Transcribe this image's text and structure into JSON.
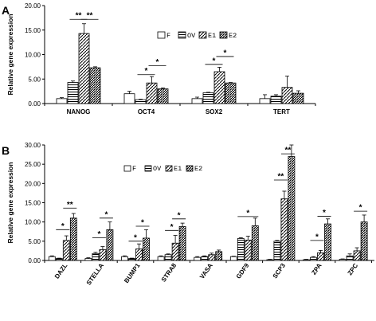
{
  "chart_data": [
    {
      "panel": "A",
      "type": "bar",
      "ylabel": "Relative gene expression",
      "ylim": [
        0,
        20
      ],
      "yticks": [
        "0.00",
        "5.00",
        "10.00",
        "15.00",
        "20.00"
      ],
      "categories": [
        "NANOG",
        "OCT4",
        "SOX2",
        "TERT"
      ],
      "legend_position": "middle-right",
      "series": [
        {
          "name": "F",
          "pattern": "white",
          "values": [
            1.0,
            2.0,
            1.0,
            1.0
          ],
          "errors": [
            0.2,
            0.5,
            0.3,
            0.8
          ]
        },
        {
          "name": "OV",
          "pattern": "horizontal",
          "values": [
            4.3,
            0.8,
            2.2,
            1.5
          ],
          "errors": [
            0.3,
            0.1,
            0.1,
            0.3
          ]
        },
        {
          "name": "E1",
          "pattern": "diagonal",
          "values": [
            14.3,
            4.2,
            6.5,
            3.3
          ],
          "errors": [
            2.0,
            1.3,
            0.9,
            2.3
          ]
        },
        {
          "name": "E2",
          "pattern": "dense-diagonal",
          "values": [
            7.3,
            3.0,
            4.2,
            2.1
          ],
          "errors": [
            0.2,
            0.2,
            0.1,
            0.5
          ]
        }
      ],
      "significance": [
        {
          "label": "**",
          "category": 0,
          "from": 1,
          "to": 2,
          "y": 17.2
        },
        {
          "label": "**",
          "category": 0,
          "from": 2,
          "to": 3,
          "y": 17.2
        },
        {
          "label": "*",
          "category": 1,
          "from": 1,
          "to": 2,
          "y": 5.9
        },
        {
          "label": "*",
          "category": 1,
          "from": 2,
          "to": 3,
          "y": 7.7
        },
        {
          "label": "*",
          "category": 2,
          "from": 1,
          "to": 2,
          "y": 8.0
        },
        {
          "label": "*",
          "category": 2,
          "from": 2,
          "to": 3,
          "y": 9.6
        }
      ]
    },
    {
      "panel": "B",
      "type": "bar",
      "ylabel": "Relative gene expression",
      "ylim": [
        0,
        30
      ],
      "yticks": [
        "0.00",
        "5.00",
        "10.00",
        "15.00",
        "20.00",
        "25.00",
        "30.00"
      ],
      "categories": [
        "DAZL",
        "STELLA",
        "BUMP1",
        "STRA8",
        "VASA",
        "GDF9",
        "SCP3",
        "ZPA",
        "ZPC"
      ],
      "legend_position": "top-left",
      "series": [
        {
          "name": "F",
          "pattern": "white",
          "values": [
            1.0,
            0.5,
            1.0,
            1.0,
            0.8,
            1.0,
            0.2,
            0.2,
            0.3
          ],
          "errors": [
            0.2,
            0.2,
            0.2,
            0.2,
            0.2,
            0.1,
            0.1,
            0.1,
            0.1
          ]
        },
        {
          "name": "OV",
          "pattern": "horizontal",
          "values": [
            0.5,
            1.8,
            0.5,
            1.5,
            1.0,
            5.7,
            5.0,
            0.8,
            1.2
          ],
          "errors": [
            0.1,
            0.3,
            0.1,
            0.2,
            0.2,
            0.2,
            0.2,
            0.2,
            0.5
          ]
        },
        {
          "name": "E1",
          "pattern": "diagonal",
          "values": [
            5.2,
            2.8,
            3.0,
            4.5,
            1.5,
            5.3,
            16.0,
            2.0,
            2.5
          ],
          "errors": [
            1.2,
            0.8,
            1.3,
            2.0,
            0.4,
            1.0,
            2.0,
            0.6,
            0.8
          ]
        },
        {
          "name": "E2",
          "pattern": "dense-diagonal",
          "values": [
            11.0,
            8.0,
            5.8,
            8.8,
            2.3,
            9.0,
            27.0,
            9.5,
            10.0
          ],
          "errors": [
            1.2,
            2.0,
            2.2,
            0.9,
            0.4,
            2.0,
            3.0,
            1.3,
            1.8
          ]
        }
      ],
      "significance": [
        {
          "label": "*",
          "category": 0,
          "from": 1,
          "to": 2,
          "y": 8.0
        },
        {
          "label": "**",
          "category": 0,
          "from": 2,
          "to": 3,
          "y": 13.6
        },
        {
          "label": "*",
          "category": 1,
          "from": 1,
          "to": 2,
          "y": 5.9
        },
        {
          "label": "*",
          "category": 1,
          "from": 2,
          "to": 3,
          "y": 11.0
        },
        {
          "label": "*",
          "category": 2,
          "from": 1,
          "to": 2,
          "y": 5.0
        },
        {
          "label": "*",
          "category": 2,
          "from": 2,
          "to": 3,
          "y": 8.9
        },
        {
          "label": "*",
          "category": 3,
          "from": 1,
          "to": 2,
          "y": 7.8
        },
        {
          "label": "*",
          "category": 3,
          "from": 2,
          "to": 3,
          "y": 10.8
        },
        {
          "label": "*",
          "category": 5,
          "from": 1,
          "to": 3,
          "y": 11.4
        },
        {
          "label": "**",
          "category": 6,
          "from": 1,
          "to": 2,
          "y": 20.9
        },
        {
          "label": "**",
          "category": 6,
          "from": 2,
          "to": 3,
          "y": 27.7
        },
        {
          "label": "*",
          "category": 7,
          "from": 1,
          "to": 2,
          "y": 5.2
        },
        {
          "label": "*",
          "category": 7,
          "from": 2,
          "to": 3,
          "y": 11.5
        },
        {
          "label": "*",
          "category": 8,
          "from": 2,
          "to": 3,
          "y": 12.8
        }
      ]
    }
  ]
}
